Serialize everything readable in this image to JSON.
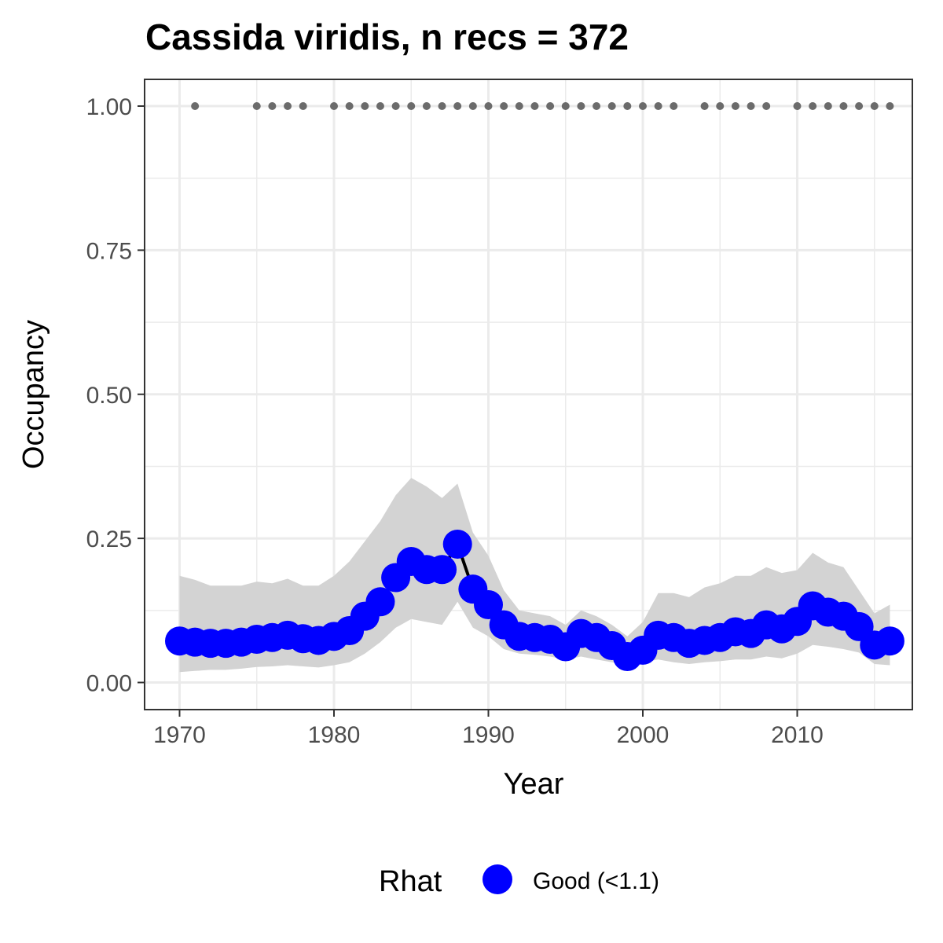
{
  "chart_data": {
    "type": "line",
    "title": "Cassida viridis, n recs = 372",
    "xlabel": "Year",
    "ylabel": "Occupancy",
    "xlim": [
      1968.2,
      1917.8
    ],
    "ylim": [
      -0.0468,
      1.0468
    ],
    "x_ticks": [
      1970,
      1980,
      1990,
      2000,
      2010
    ],
    "x_tick_labels": [
      "1970",
      "1980",
      "1990",
      "2000",
      "2010"
    ],
    "y_ticks": [
      0,
      0.25,
      0.5,
      0.75,
      1.0
    ],
    "y_tick_labels": [
      "0.00",
      "0.25",
      "0.50",
      "0.75",
      "1.00"
    ],
    "grid": true,
    "legend": {
      "title": "Rhat",
      "position": "bottom",
      "entries": [
        {
          "label": "Good (<1.1)",
          "color": "#0000ff"
        }
      ]
    },
    "series": [
      {
        "name": "Good (<1.1)",
        "color": "#0000ff",
        "x": [
          1970,
          1971,
          1972,
          1973,
          1974,
          1975,
          1976,
          1977,
          1978,
          1979,
          1980,
          1981,
          1982,
          1983,
          1984,
          1985,
          1986,
          1987,
          1988,
          1989,
          1990,
          1991,
          1992,
          1993,
          1994,
          1995,
          1996,
          1997,
          1998,
          1999,
          2000,
          2001,
          2002,
          2003,
          2004,
          2005,
          2006,
          2007,
          2008,
          2009,
          2010,
          2011,
          2012,
          2013,
          2014,
          2015,
          2016
        ],
        "y": [
          0.072,
          0.07,
          0.068,
          0.068,
          0.07,
          0.075,
          0.078,
          0.082,
          0.076,
          0.073,
          0.08,
          0.09,
          0.115,
          0.14,
          0.182,
          0.21,
          0.196,
          0.196,
          0.24,
          0.162,
          0.135,
          0.1,
          0.08,
          0.078,
          0.075,
          0.062,
          0.085,
          0.078,
          0.064,
          0.045,
          0.056,
          0.082,
          0.078,
          0.068,
          0.073,
          0.078,
          0.088,
          0.085,
          0.1,
          0.093,
          0.106,
          0.133,
          0.122,
          0.115,
          0.097,
          0.065,
          0.072
        ],
        "ci_lower": [
          0.018,
          0.02,
          0.022,
          0.022,
          0.024,
          0.027,
          0.028,
          0.03,
          0.028,
          0.026,
          0.03,
          0.035,
          0.05,
          0.07,
          0.095,
          0.11,
          0.105,
          0.1,
          0.14,
          0.095,
          0.08,
          0.058,
          0.05,
          0.048,
          0.045,
          0.04,
          0.045,
          0.04,
          0.035,
          0.03,
          0.035,
          0.04,
          0.035,
          0.032,
          0.035,
          0.037,
          0.04,
          0.04,
          0.045,
          0.042,
          0.05,
          0.065,
          0.062,
          0.058,
          0.052,
          0.032,
          0.03
        ],
        "ci_upper": [
          0.185,
          0.178,
          0.168,
          0.168,
          0.168,
          0.175,
          0.172,
          0.18,
          0.168,
          0.168,
          0.185,
          0.21,
          0.245,
          0.28,
          0.325,
          0.355,
          0.34,
          0.32,
          0.345,
          0.26,
          0.22,
          0.16,
          0.125,
          0.12,
          0.115,
          0.1,
          0.125,
          0.115,
          0.1,
          0.08,
          0.105,
          0.155,
          0.155,
          0.148,
          0.165,
          0.172,
          0.185,
          0.185,
          0.2,
          0.19,
          0.195,
          0.225,
          0.208,
          0.2,
          0.16,
          0.12,
          0.135
        ]
      }
    ],
    "records": {
      "color": "#6b6b6b",
      "y": 1.0,
      "x": [
        1971,
        1975,
        1976,
        1977,
        1978,
        1980,
        1981,
        1982,
        1983,
        1984,
        1985,
        1986,
        1987,
        1988,
        1989,
        1990,
        1991,
        1992,
        1993,
        1994,
        1995,
        1996,
        1997,
        1998,
        1999,
        2000,
        2001,
        2002,
        2004,
        2005,
        2006,
        2007,
        2008,
        2010,
        2011,
        2012,
        2013,
        2014,
        2015,
        2016
      ]
    }
  }
}
